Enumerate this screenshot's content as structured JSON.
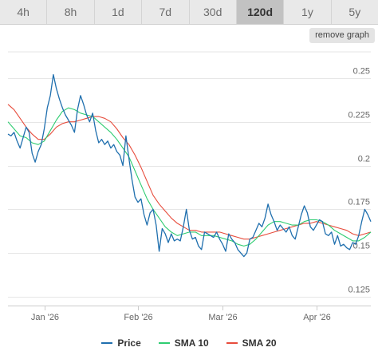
{
  "tabs": [
    {
      "label": "4h",
      "active": false
    },
    {
      "label": "8h",
      "active": false
    },
    {
      "label": "1d",
      "active": false
    },
    {
      "label": "7d",
      "active": false
    },
    {
      "label": "30d",
      "active": false
    },
    {
      "label": "120d",
      "active": true
    },
    {
      "label": "1y",
      "active": false
    },
    {
      "label": "5y",
      "active": false
    }
  ],
  "remove_graph_label": "remove graph",
  "chart_data": {
    "type": "line",
    "x_labels": [
      "Jan '26",
      "Feb '26",
      "Mar '26",
      "Apr '26"
    ],
    "x_label_days": [
      12,
      43,
      71,
      102
    ],
    "y_ticks": [
      "0.25",
      "0.225",
      "0.2",
      "0.175",
      "0.15",
      "0.125"
    ],
    "y_tick_values": [
      0.25,
      0.225,
      0.2,
      0.175,
      0.15,
      0.125
    ],
    "ylim": [
      0.12,
      0.265
    ],
    "xlim": [
      0,
      120
    ],
    "grid": true,
    "legend_position": "bottom",
    "series": [
      {
        "name": "Price",
        "color": "#1f6fae",
        "points": [
          [
            0,
            0.218
          ],
          [
            1,
            0.217
          ],
          [
            2,
            0.219
          ],
          [
            3,
            0.214
          ],
          [
            4,
            0.21
          ],
          [
            5,
            0.216
          ],
          [
            6,
            0.222
          ],
          [
            7,
            0.219
          ],
          [
            8,
            0.207
          ],
          [
            9,
            0.202
          ],
          [
            10,
            0.208
          ],
          [
            11,
            0.212
          ],
          [
            12,
            0.221
          ],
          [
            13,
            0.233
          ],
          [
            14,
            0.24
          ],
          [
            15,
            0.252
          ],
          [
            16,
            0.244
          ],
          [
            17,
            0.238
          ],
          [
            18,
            0.233
          ],
          [
            19,
            0.229
          ],
          [
            20,
            0.226
          ],
          [
            21,
            0.223
          ],
          [
            22,
            0.219
          ],
          [
            23,
            0.232
          ],
          [
            24,
            0.24
          ],
          [
            25,
            0.235
          ],
          [
            26,
            0.229
          ],
          [
            27,
            0.225
          ],
          [
            28,
            0.23
          ],
          [
            29,
            0.22
          ],
          [
            30,
            0.213
          ],
          [
            31,
            0.215
          ],
          [
            32,
            0.212
          ],
          [
            33,
            0.214
          ],
          [
            34,
            0.21
          ],
          [
            35,
            0.212
          ],
          [
            36,
            0.208
          ],
          [
            37,
            0.206
          ],
          [
            38,
            0.2
          ],
          [
            39,
            0.217
          ],
          [
            40,
            0.204
          ],
          [
            41,
            0.192
          ],
          [
            42,
            0.182
          ],
          [
            43,
            0.179
          ],
          [
            44,
            0.181
          ],
          [
            45,
            0.172
          ],
          [
            46,
            0.166
          ],
          [
            47,
            0.173
          ],
          [
            48,
            0.175
          ],
          [
            49,
            0.166
          ],
          [
            50,
            0.151
          ],
          [
            51,
            0.164
          ],
          [
            52,
            0.161
          ],
          [
            53,
            0.156
          ],
          [
            54,
            0.161
          ],
          [
            55,
            0.157
          ],
          [
            56,
            0.158
          ],
          [
            57,
            0.157
          ],
          [
            58,
            0.165
          ],
          [
            59,
            0.175
          ],
          [
            60,
            0.163
          ],
          [
            61,
            0.158
          ],
          [
            62,
            0.159
          ],
          [
            63,
            0.154
          ],
          [
            64,
            0.152
          ],
          [
            65,
            0.162
          ],
          [
            66,
            0.161
          ],
          [
            67,
            0.16
          ],
          [
            68,
            0.159
          ],
          [
            69,
            0.162
          ],
          [
            70,
            0.158
          ],
          [
            71,
            0.155
          ],
          [
            72,
            0.151
          ],
          [
            73,
            0.161
          ],
          [
            74,
            0.158
          ],
          [
            75,
            0.156
          ],
          [
            76,
            0.152
          ],
          [
            77,
            0.15
          ],
          [
            78,
            0.148
          ],
          [
            79,
            0.15
          ],
          [
            80,
            0.158
          ],
          [
            81,
            0.159
          ],
          [
            82,
            0.163
          ],
          [
            83,
            0.167
          ],
          [
            84,
            0.165
          ],
          [
            85,
            0.17
          ],
          [
            86,
            0.178
          ],
          [
            87,
            0.172
          ],
          [
            88,
            0.168
          ],
          [
            89,
            0.163
          ],
          [
            90,
            0.166
          ],
          [
            91,
            0.164
          ],
          [
            92,
            0.162
          ],
          [
            93,
            0.165
          ],
          [
            94,
            0.16
          ],
          [
            95,
            0.158
          ],
          [
            96,
            0.165
          ],
          [
            97,
            0.172
          ],
          [
            98,
            0.177
          ],
          [
            99,
            0.173
          ],
          [
            100,
            0.165
          ],
          [
            101,
            0.163
          ],
          [
            102,
            0.166
          ],
          [
            103,
            0.169
          ],
          [
            104,
            0.168
          ],
          [
            105,
            0.161
          ],
          [
            106,
            0.16
          ],
          [
            107,
            0.162
          ],
          [
            108,
            0.155
          ],
          [
            109,
            0.16
          ],
          [
            110,
            0.154
          ],
          [
            111,
            0.155
          ],
          [
            112,
            0.153
          ],
          [
            113,
            0.152
          ],
          [
            114,
            0.156
          ],
          [
            115,
            0.155
          ],
          [
            116,
            0.16
          ],
          [
            117,
            0.168
          ],
          [
            118,
            0.175
          ],
          [
            119,
            0.172
          ],
          [
            120,
            0.168
          ]
        ]
      },
      {
        "name": "SMA 10",
        "color": "#2ecc71",
        "points": [
          [
            0,
            0.225
          ],
          [
            2,
            0.221
          ],
          [
            4,
            0.217
          ],
          [
            6,
            0.216
          ],
          [
            8,
            0.213
          ],
          [
            10,
            0.212
          ],
          [
            12,
            0.214
          ],
          [
            14,
            0.22
          ],
          [
            16,
            0.226
          ],
          [
            18,
            0.231
          ],
          [
            20,
            0.233
          ],
          [
            22,
            0.232
          ],
          [
            24,
            0.23
          ],
          [
            26,
            0.229
          ],
          [
            28,
            0.228
          ],
          [
            30,
            0.225
          ],
          [
            32,
            0.222
          ],
          [
            34,
            0.219
          ],
          [
            36,
            0.215
          ],
          [
            38,
            0.21
          ],
          [
            40,
            0.205
          ],
          [
            42,
            0.197
          ],
          [
            44,
            0.189
          ],
          [
            46,
            0.181
          ],
          [
            48,
            0.175
          ],
          [
            50,
            0.17
          ],
          [
            52,
            0.165
          ],
          [
            54,
            0.162
          ],
          [
            56,
            0.16
          ],
          [
            58,
            0.161
          ],
          [
            60,
            0.162
          ],
          [
            62,
            0.162
          ],
          [
            64,
            0.16
          ],
          [
            66,
            0.16
          ],
          [
            68,
            0.16
          ],
          [
            70,
            0.159
          ],
          [
            72,
            0.158
          ],
          [
            74,
            0.157
          ],
          [
            76,
            0.155
          ],
          [
            78,
            0.154
          ],
          [
            80,
            0.155
          ],
          [
            82,
            0.158
          ],
          [
            84,
            0.162
          ],
          [
            86,
            0.166
          ],
          [
            88,
            0.168
          ],
          [
            90,
            0.168
          ],
          [
            92,
            0.167
          ],
          [
            94,
            0.166
          ],
          [
            96,
            0.166
          ],
          [
            98,
            0.168
          ],
          [
            100,
            0.169
          ],
          [
            102,
            0.169
          ],
          [
            104,
            0.168
          ],
          [
            106,
            0.166
          ],
          [
            108,
            0.163
          ],
          [
            110,
            0.161
          ],
          [
            112,
            0.159
          ],
          [
            114,
            0.157
          ],
          [
            116,
            0.157
          ],
          [
            118,
            0.159
          ],
          [
            120,
            0.162
          ]
        ]
      },
      {
        "name": "SMA 20",
        "color": "#e74c3c",
        "points": [
          [
            0,
            0.235
          ],
          [
            2,
            0.232
          ],
          [
            4,
            0.227
          ],
          [
            6,
            0.222
          ],
          [
            8,
            0.218
          ],
          [
            10,
            0.215
          ],
          [
            12,
            0.215
          ],
          [
            14,
            0.218
          ],
          [
            16,
            0.222
          ],
          [
            18,
            0.224
          ],
          [
            20,
            0.225
          ],
          [
            22,
            0.225
          ],
          [
            24,
            0.226
          ],
          [
            26,
            0.227
          ],
          [
            28,
            0.228
          ],
          [
            30,
            0.228
          ],
          [
            32,
            0.227
          ],
          [
            34,
            0.225
          ],
          [
            36,
            0.221
          ],
          [
            38,
            0.216
          ],
          [
            40,
            0.212
          ],
          [
            42,
            0.206
          ],
          [
            44,
            0.199
          ],
          [
            46,
            0.191
          ],
          [
            48,
            0.183
          ],
          [
            50,
            0.178
          ],
          [
            52,
            0.174
          ],
          [
            54,
            0.17
          ],
          [
            56,
            0.167
          ],
          [
            58,
            0.165
          ],
          [
            60,
            0.163
          ],
          [
            62,
            0.163
          ],
          [
            64,
            0.162
          ],
          [
            66,
            0.162
          ],
          [
            68,
            0.162
          ],
          [
            70,
            0.162
          ],
          [
            72,
            0.161
          ],
          [
            74,
            0.16
          ],
          [
            76,
            0.159
          ],
          [
            78,
            0.158
          ],
          [
            80,
            0.158
          ],
          [
            82,
            0.159
          ],
          [
            84,
            0.16
          ],
          [
            86,
            0.161
          ],
          [
            88,
            0.162
          ],
          [
            90,
            0.163
          ],
          [
            92,
            0.164
          ],
          [
            94,
            0.165
          ],
          [
            96,
            0.166
          ],
          [
            98,
            0.167
          ],
          [
            100,
            0.167
          ],
          [
            102,
            0.168
          ],
          [
            104,
            0.167
          ],
          [
            106,
            0.166
          ],
          [
            108,
            0.165
          ],
          [
            110,
            0.164
          ],
          [
            112,
            0.163
          ],
          [
            114,
            0.161
          ],
          [
            116,
            0.16
          ],
          [
            118,
            0.161
          ],
          [
            120,
            0.162
          ]
        ]
      }
    ]
  },
  "legend": [
    {
      "label": "Price",
      "color": "#1f6fae"
    },
    {
      "label": "SMA 10",
      "color": "#2ecc71"
    },
    {
      "label": "SMA 20",
      "color": "#e74c3c"
    }
  ]
}
